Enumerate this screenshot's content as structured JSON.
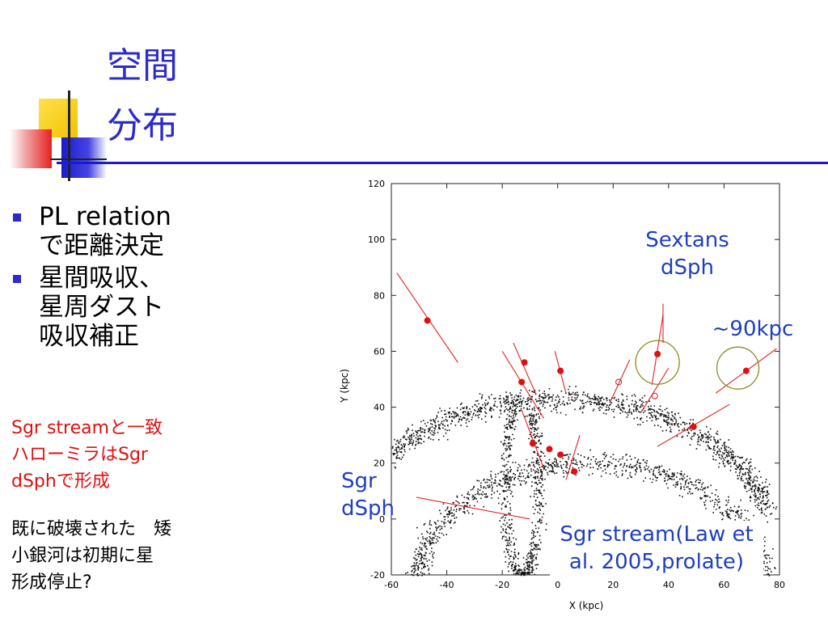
{
  "slide": {
    "title_line1": "空間",
    "title_line2": "分布",
    "bullets": [
      {
        "line1": "PL relation",
        "line2": "で距離決定"
      },
      {
        "line1": "星間吸収、",
        "line2": "星周ダスト",
        "line3": "吸収補正"
      }
    ],
    "red_note": [
      "Sgr streamと一致",
      "ハローミラはSgr",
      "dSphで形成"
    ],
    "black_note": [
      "既に破壊された　矮",
      "小銀河は初期に星",
      "形成停止?"
    ],
    "callouts": {
      "sextans": [
        "Sextans",
        "dSph"
      ],
      "distance": "~90kpc",
      "sgr_dsph": [
        "Sgr",
        "dSph"
      ],
      "sgr_stream": [
        "Sgr stream(Law et",
        "al. 2005,prolate)"
      ]
    },
    "colors": {
      "title": "#2b2bcc",
      "red_note": "#dd1111",
      "callout": "#1f3fbf",
      "points": "#dd1111",
      "circles": "#8b8b22"
    }
  },
  "chart_data": {
    "type": "scatter",
    "xlabel": "X (kpc)",
    "ylabel": "Y (kpc)",
    "xlim": [
      -60,
      80
    ],
    "ylim": [
      -20,
      120
    ],
    "xticks": [
      "-60",
      "-40",
      "-20",
      "0",
      "20",
      "40",
      "60",
      "80"
    ],
    "yticks": [
      "-20",
      "0",
      "20",
      "40",
      "60",
      "80",
      "100",
      "120"
    ],
    "series": [
      {
        "points": [
          {
            "x": -47,
            "y": 71
          },
          {
            "x": -12,
            "y": 56
          },
          {
            "x": -13,
            "y": 49
          },
          {
            "x": 1,
            "y": 53
          },
          {
            "x": 36,
            "y": 59
          },
          {
            "x": 68,
            "y": 53
          },
          {
            "x": 49,
            "y": 33
          },
          {
            "x": -9,
            "y": 27
          },
          {
            "x": -3,
            "y": 25
          },
          {
            "x": 1,
            "y": 23
          },
          {
            "x": 6,
            "y": 17
          }
        ],
        "open_points": [
          {
            "x": 35,
            "y": 44
          },
          {
            "x": 22,
            "y": 49
          }
        ],
        "error_bars": [
          {
            "x1": -58,
            "y1": 88,
            "x2": -36,
            "y2": 56
          },
          {
            "x1": -16,
            "y1": 63,
            "x2": -8,
            "y2": 45
          },
          {
            "x1": -20,
            "y1": 60,
            "x2": -5,
            "y2": 36
          },
          {
            "x1": -1,
            "y1": 60,
            "x2": 3,
            "y2": 45
          },
          {
            "x1": 38,
            "y1": 73,
            "x2": 34,
            "y2": 48
          },
          {
            "x1": 79,
            "y1": 61,
            "x2": 57,
            "y2": 45
          },
          {
            "x1": 62,
            "y1": 41,
            "x2": 36,
            "y2": 26
          },
          {
            "x1": 26,
            "y1": 57,
            "x2": 19,
            "y2": 42
          },
          {
            "x1": 40,
            "y1": 54,
            "x2": 30,
            "y2": 38
          },
          {
            "x1": -13,
            "y1": 39,
            "x2": -5,
            "y2": 18
          },
          {
            "x1": 8,
            "y1": 30,
            "x2": 3,
            "y2": 14
          }
        ]
      }
    ]
  }
}
